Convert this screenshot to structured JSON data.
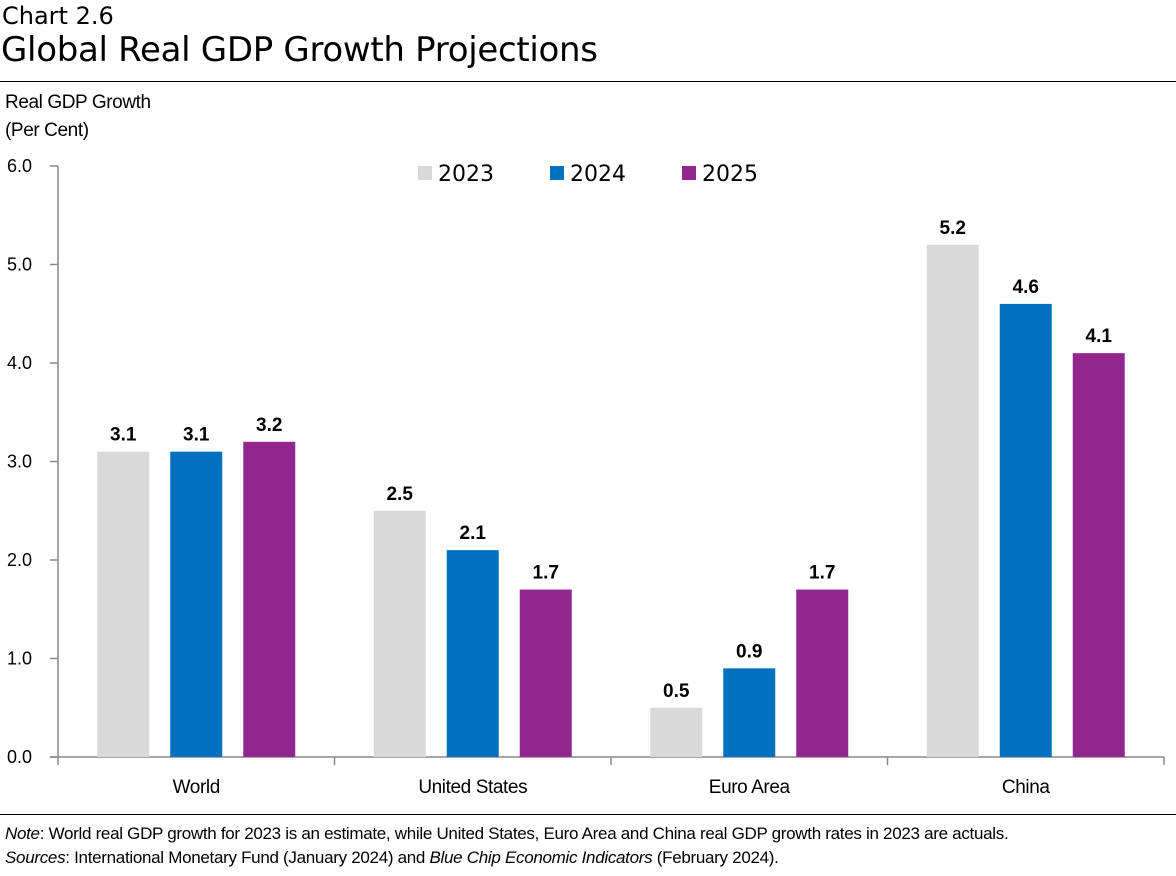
{
  "header": {
    "chart_number": "Chart 2.6",
    "title": "Global Real GDP Growth Projections"
  },
  "chart_data": {
    "type": "bar",
    "title": "Global Real GDP Growth Projections",
    "ylabel_line1": "Real GDP Growth",
    "ylabel_line2": "(Per Cent)",
    "xlabel": "",
    "ylim": [
      0,
      6
    ],
    "yticks": [
      "0.0",
      "1.0",
      "2.0",
      "3.0",
      "4.0",
      "5.0",
      "6.0"
    ],
    "grid": false,
    "legend_position": "top-center",
    "categories": [
      "World",
      "United States",
      "Euro Area",
      "China"
    ],
    "series": [
      {
        "name": "2023",
        "color": "#d9d9d9",
        "values": [
          3.1,
          2.5,
          0.5,
          5.2
        ]
      },
      {
        "name": "2024",
        "color": "#0070c0",
        "values": [
          3.1,
          2.1,
          0.9,
          4.6
        ]
      },
      {
        "name": "2025",
        "color": "#92278f",
        "values": [
          3.2,
          1.7,
          1.7,
          4.1
        ]
      }
    ]
  },
  "notes": {
    "note_label": "Note",
    "note_text": ": World real GDP growth for 2023 is an estimate, while United States, Euro Area and China real GDP growth rates in 2023 are actuals.",
    "sources_label": "Sources",
    "sources_text_1": ": International Monetary Fund (January 2024) and ",
    "sources_italic": "Blue Chip Economic Indicators",
    "sources_text_2": " (February 2024)."
  }
}
